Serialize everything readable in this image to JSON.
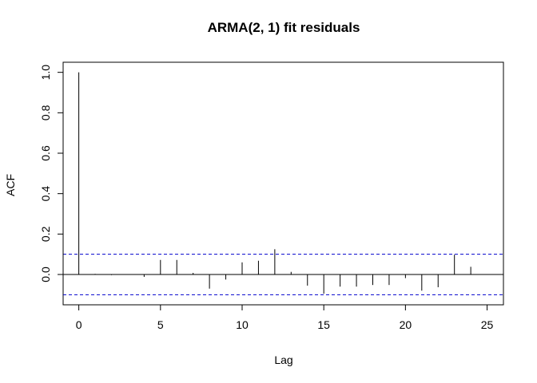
{
  "chart_data": {
    "type": "bar",
    "title": "ARMA(2, 1) fit residuals",
    "xlabel": "Lag",
    "ylabel": "ACF",
    "xlim": [
      -0.96,
      26
    ],
    "ylim": [
      -0.15,
      1.05
    ],
    "x_ticks": [
      0,
      5,
      10,
      15,
      20,
      25
    ],
    "y_ticks": [
      0.0,
      0.2,
      0.4,
      0.6,
      0.8,
      1.0
    ],
    "y_tick_labels": [
      "0.0",
      "0.2",
      "0.4",
      "0.6",
      "0.8",
      "1.0"
    ],
    "x_tick_labels": [
      "0",
      "5",
      "10",
      "15",
      "20",
      "25"
    ],
    "confidence_bound": 0.1,
    "confidence_color": "#0000CD",
    "lags": [
      0,
      1,
      2,
      3,
      4,
      5,
      6,
      7,
      8,
      9,
      10,
      11,
      12,
      13,
      14,
      15,
      16,
      17,
      18,
      19,
      20,
      21,
      22,
      23,
      24
    ],
    "acf": [
      1.0,
      0.003,
      -0.003,
      0.0,
      -0.012,
      0.072,
      0.072,
      0.008,
      -0.07,
      -0.025,
      0.06,
      0.068,
      0.125,
      0.013,
      -0.055,
      -0.095,
      -0.06,
      -0.06,
      -0.052,
      -0.052,
      -0.018,
      -0.08,
      -0.063,
      0.098,
      0.038
    ]
  }
}
